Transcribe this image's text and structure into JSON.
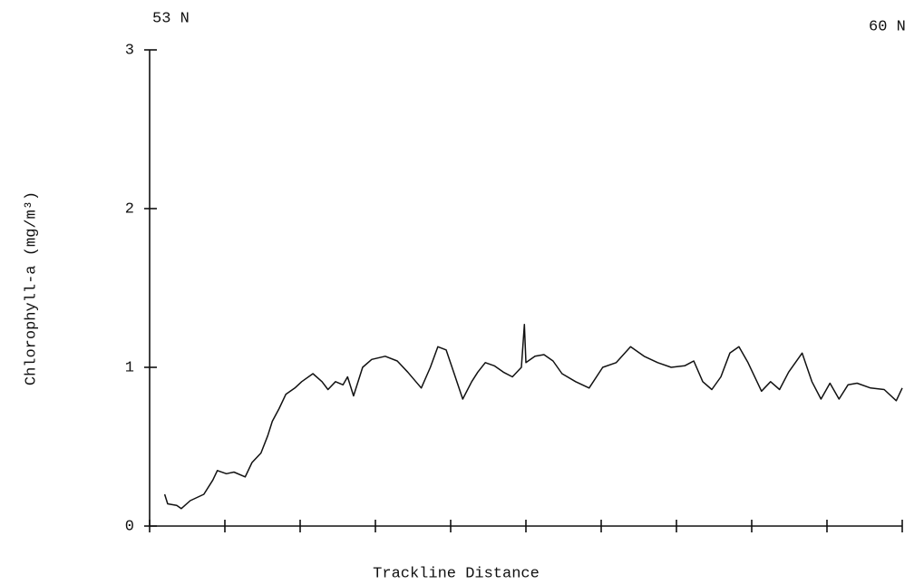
{
  "chart_data": {
    "type": "line",
    "xlabel": "Trackline Distance",
    "ylabel": "Chlorophyll-a (mg/m³)",
    "annotations": [
      "53 N",
      "60 N"
    ],
    "xlim": [
      0,
      10
    ],
    "xticks": [
      0,
      1,
      2,
      3,
      4,
      5,
      6,
      7,
      8,
      9,
      10
    ],
    "ylim": [
      0,
      3
    ],
    "yticks": [
      0,
      1,
      2,
      3
    ],
    "grid": false,
    "color": "#111111",
    "x": [
      0.2,
      0.24,
      0.36,
      0.42,
      0.54,
      0.72,
      0.84,
      0.9,
      1.02,
      1.12,
      1.27,
      1.36,
      1.48,
      1.57,
      1.63,
      1.72,
      1.81,
      1.93,
      2.02,
      2.17,
      2.29,
      2.37,
      2.47,
      2.57,
      2.63,
      2.71,
      2.83,
      2.95,
      3.13,
      3.29,
      3.43,
      3.61,
      3.73,
      3.83,
      3.94,
      4.04,
      4.16,
      4.28,
      4.36,
      4.46,
      4.58,
      4.7,
      4.82,
      4.94,
      4.98,
      5.0,
      5.12,
      5.24,
      5.36,
      5.48,
      5.66,
      5.84,
      6.02,
      6.2,
      6.39,
      6.57,
      6.75,
      6.93,
      7.11,
      7.23,
      7.35,
      7.47,
      7.59,
      7.71,
      7.83,
      7.95,
      8.13,
      8.25,
      8.37,
      8.49,
      8.67,
      8.8,
      8.92,
      9.04,
      9.16,
      9.28,
      9.4,
      9.58,
      9.76,
      9.92,
      10.0
    ],
    "values": [
      0.2,
      0.14,
      0.13,
      0.11,
      0.16,
      0.2,
      0.29,
      0.35,
      0.33,
      0.34,
      0.31,
      0.4,
      0.46,
      0.57,
      0.66,
      0.74,
      0.83,
      0.87,
      0.91,
      0.96,
      0.91,
      0.86,
      0.91,
      0.89,
      0.94,
      0.82,
      1.0,
      1.05,
      1.07,
      1.04,
      0.97,
      0.87,
      1.0,
      1.13,
      1.11,
      0.97,
      0.8,
      0.91,
      0.97,
      1.03,
      1.01,
      0.97,
      0.94,
      1.0,
      1.27,
      1.03,
      1.07,
      1.08,
      1.04,
      0.96,
      0.91,
      0.87,
      1.0,
      1.03,
      1.13,
      1.07,
      1.03,
      1.0,
      1.01,
      1.04,
      0.91,
      0.86,
      0.94,
      1.09,
      1.13,
      1.03,
      0.85,
      0.91,
      0.86,
      0.97,
      1.09,
      0.91,
      0.8,
      0.9,
      0.8,
      0.89,
      0.9,
      0.87,
      0.86,
      0.79,
      0.87
    ]
  }
}
